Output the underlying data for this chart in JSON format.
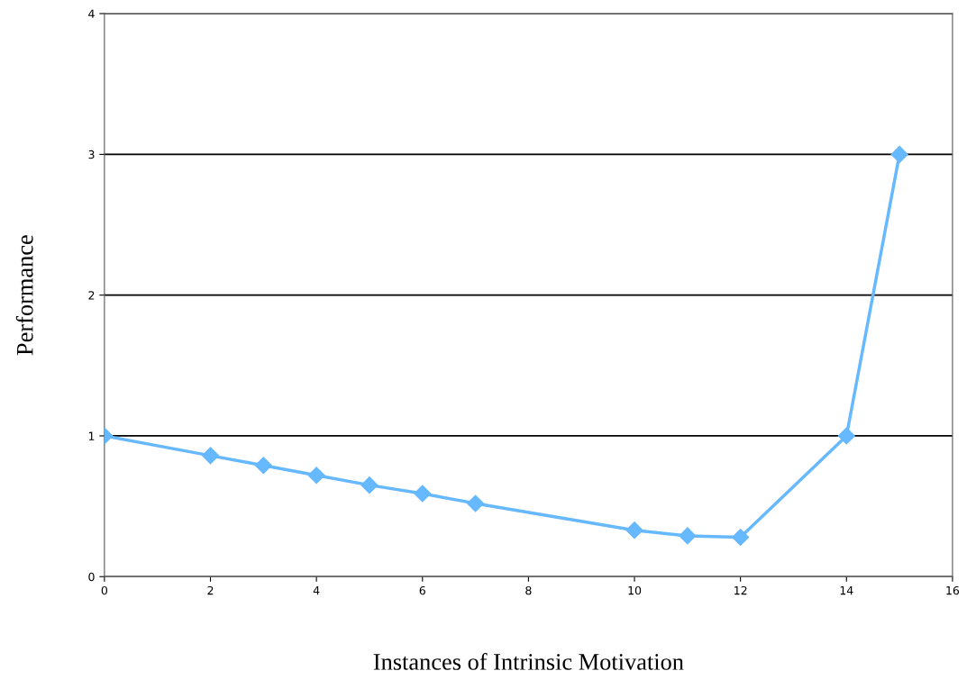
{
  "chart_data": {
    "type": "line",
    "xlabel": "Instances of Intrinsic Motivation",
    "ylabel": "Performance",
    "x": [
      0,
      2,
      3,
      4,
      5,
      6,
      7,
      10,
      11,
      12,
      14,
      15
    ],
    "series": [
      {
        "color": "#66b8ff",
        "values": [
          1.0,
          0.86,
          0.79,
          0.72,
          0.65,
          0.59,
          0.52,
          0.33,
          0.29,
          0.28,
          1.0,
          3.0
        ]
      }
    ],
    "xlim": [
      0,
      16
    ],
    "xticks": [
      0,
      2,
      4,
      6,
      8,
      10,
      12,
      14,
      16
    ],
    "ylim": [
      0,
      4
    ],
    "yticks": [
      0,
      1,
      2,
      3,
      4
    ],
    "grid": "y",
    "marker": "diamond",
    "line_style": "solid",
    "legend": false
  }
}
